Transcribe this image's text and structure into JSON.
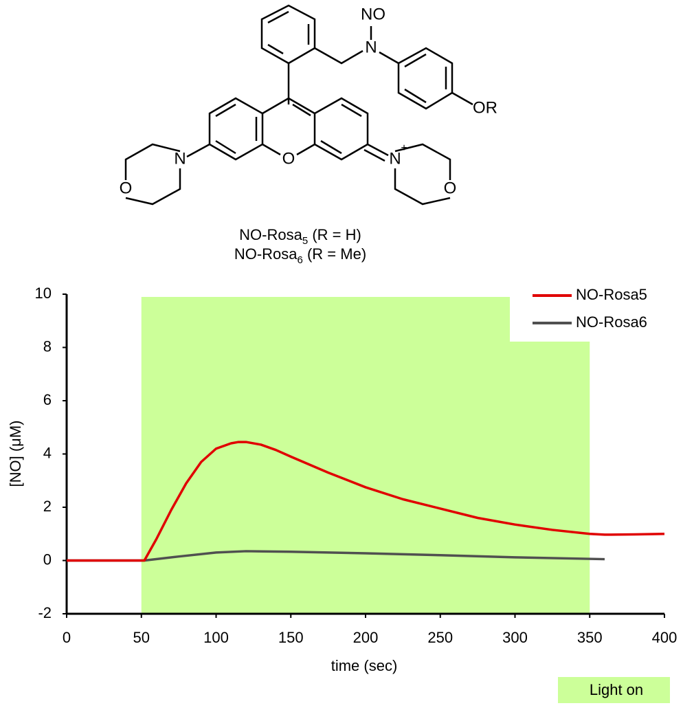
{
  "structure": {
    "atoms": [
      "NO",
      "N",
      "OR",
      "N",
      "O",
      "O",
      "N",
      "+",
      "O"
    ],
    "captions": [
      {
        "name": "NO-Rosa",
        "sub": "5",
        "rest": " (R = H)"
      },
      {
        "name": "NO-Rosa",
        "sub": "6",
        "rest": " (R = Me)"
      }
    ]
  },
  "chart_data": {
    "type": "line",
    "xlabel": "time (sec)",
    "ylabel": "[NO] (μM)",
    "xlim": [
      0,
      400
    ],
    "ylim": [
      -2,
      10
    ],
    "xticks": [
      0,
      50,
      100,
      150,
      200,
      250,
      300,
      350,
      400
    ],
    "yticks": [
      -2,
      0,
      2,
      4,
      6,
      8,
      10
    ],
    "shaded_region": {
      "x": [
        50,
        350
      ],
      "label": "Light on",
      "color": "#ccff99"
    },
    "legend": "top-right",
    "series": [
      {
        "name": "NO-Rosa5",
        "color": "#e00000",
        "x": [
          0,
          50,
          52,
          55,
          60,
          70,
          80,
          90,
          100,
          110,
          115,
          120,
          130,
          140,
          150,
          175,
          200,
          225,
          250,
          275,
          300,
          325,
          350,
          360,
          380,
          400
        ],
        "values": [
          0,
          0,
          0,
          0.3,
          0.8,
          1.9,
          2.9,
          3.7,
          4.2,
          4.4,
          4.45,
          4.45,
          4.35,
          4.15,
          3.9,
          3.3,
          2.75,
          2.3,
          1.95,
          1.6,
          1.35,
          1.15,
          1.0,
          0.97,
          0.98,
          1.0
        ]
      },
      {
        "name": "NO-Rosa6",
        "color": "#505050",
        "x": [
          0,
          50,
          52,
          75,
          100,
          120,
          150,
          200,
          250,
          300,
          360
        ],
        "values": [
          0,
          0,
          0,
          0.15,
          0.3,
          0.35,
          0.33,
          0.27,
          0.2,
          0.12,
          0.05
        ]
      }
    ]
  }
}
